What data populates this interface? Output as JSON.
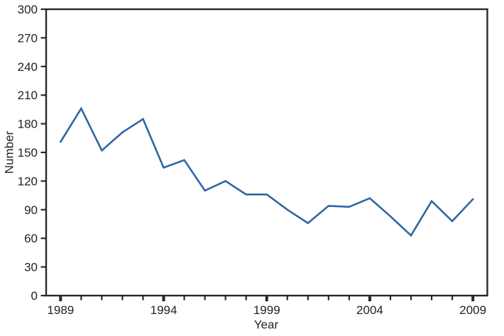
{
  "chart_data": {
    "type": "line",
    "title": "",
    "xlabel": "Year",
    "ylabel": "Number",
    "x": [
      1989,
      1990,
      1991,
      1992,
      1993,
      1994,
      1995,
      1996,
      1997,
      1998,
      1999,
      2000,
      2001,
      2002,
      2003,
      2004,
      2005,
      2006,
      2007,
      2008,
      2009
    ],
    "values": [
      161,
      196,
      152,
      171,
      185,
      134,
      142,
      110,
      120,
      106,
      106,
      90,
      76,
      94,
      93,
      102,
      83,
      63,
      99,
      78,
      101
    ],
    "series": [
      {
        "name": "Number",
        "values": [
          161,
          196,
          152,
          171,
          185,
          134,
          142,
          110,
          120,
          106,
          106,
          90,
          76,
          94,
          93,
          102,
          83,
          63,
          99,
          78,
          101
        ]
      }
    ],
    "xlim": [
      1988.3,
      2009.7
    ],
    "ylim": [
      0,
      300
    ],
    "y_ticks": [
      0,
      30,
      60,
      90,
      120,
      150,
      180,
      210,
      240,
      270,
      300
    ],
    "x_major_ticks": [
      1989,
      1994,
      1999,
      2004,
      2009
    ],
    "x_tick_labels": [
      "1989",
      "1994",
      "1999",
      "2004",
      "2009"
    ],
    "x_minor_tick_interval": 1,
    "grid": false,
    "legend": false,
    "marker": "none",
    "line_color": "#2e66a4",
    "axis_color": "#2b2728",
    "text_color": "#231f20",
    "background": "#ffffff"
  }
}
